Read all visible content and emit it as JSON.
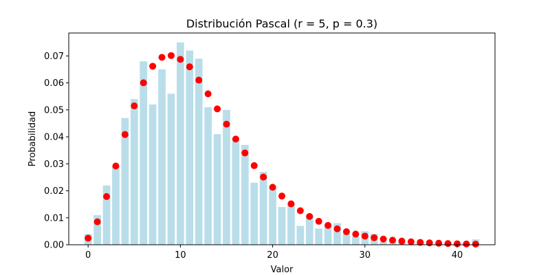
{
  "chart_data": {
    "type": "bar",
    "title": "Distribución Pascal (r = 5, p = 0.3)",
    "xlabel": "Valor",
    "ylabel": "Probabilidad",
    "xlim": [
      -2.1,
      44.1
    ],
    "ylim": [
      0,
      0.0785
    ],
    "grid": false,
    "legend": "none",
    "xticks": [
      0,
      10,
      20,
      30,
      40
    ],
    "yticks": [
      0.0,
      0.01,
      0.02,
      0.03,
      0.04,
      0.05,
      0.06,
      0.07
    ],
    "ytick_labels": [
      "0.00",
      "0.01",
      "0.02",
      "0.03",
      "0.04",
      "0.05",
      "0.06",
      "0.07"
    ],
    "bar_color": "#add8e6",
    "point_color": "#ff0000",
    "series": [
      {
        "type": "bar",
        "x": [
          0,
          1,
          2,
          3,
          4,
          5,
          6,
          7,
          8,
          9,
          10,
          11,
          12,
          13,
          14,
          15,
          16,
          17,
          18,
          19,
          20,
          21,
          22,
          23,
          24,
          25,
          26,
          27,
          28,
          29,
          30,
          31,
          32,
          33,
          34,
          35,
          36,
          37,
          38,
          39,
          40,
          41,
          42
        ],
        "values": [
          0.004,
          0.011,
          0.022,
          0.029,
          0.047,
          0.054,
          0.068,
          0.052,
          0.065,
          0.056,
          0.075,
          0.072,
          0.069,
          0.051,
          0.041,
          0.05,
          0.039,
          0.037,
          0.023,
          0.027,
          0.021,
          0.014,
          0.015,
          0.007,
          0.011,
          0.006,
          0.007,
          0.008,
          0.004,
          0.003,
          0.005,
          0.004,
          0.001,
          0.001,
          0.001,
          0.0,
          0.001,
          0.0,
          0.0,
          0.0,
          0.0,
          0.0,
          0.002
        ]
      },
      {
        "type": "scatter",
        "x": [
          0,
          1,
          2,
          3,
          4,
          5,
          6,
          7,
          8,
          9,
          10,
          11,
          12,
          13,
          14,
          15,
          16,
          17,
          18,
          19,
          20,
          21,
          22,
          23,
          24,
          25,
          26,
          27,
          28,
          29,
          30,
          31,
          32,
          33,
          34,
          35,
          36,
          37,
          38,
          39,
          40,
          41,
          42
        ],
        "values": [
          0.00243,
          0.00851,
          0.01787,
          0.02918,
          0.04086,
          0.05147,
          0.06004,
          0.06618,
          0.06948,
          0.07013,
          0.06873,
          0.06597,
          0.06103,
          0.05595,
          0.05036,
          0.0447,
          0.03919,
          0.03404,
          0.02933,
          0.02508,
          0.02132,
          0.01805,
          0.01515,
          0.01262,
          0.01048,
          0.00869,
          0.00718,
          0.0059,
          0.00483,
          0.00394,
          0.0032,
          0.0026,
          0.0021,
          0.00169,
          0.00136,
          0.00109,
          0.00087,
          0.0007,
          0.00056,
          0.00045,
          0.00035,
          0.00028,
          0.00022
        ]
      }
    ]
  }
}
